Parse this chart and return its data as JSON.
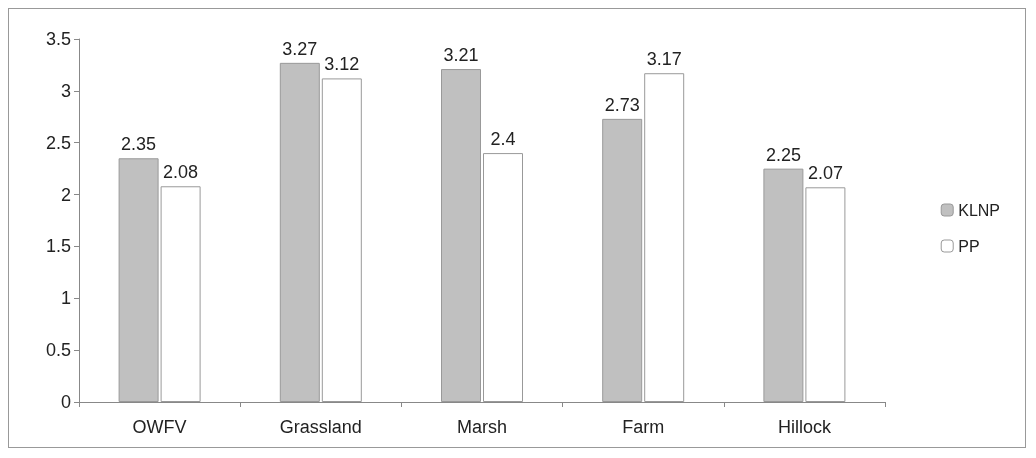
{
  "chart_data": {
    "type": "bar",
    "categories": [
      "OWFV",
      "Grassland",
      "Marsh",
      "Farm",
      "Hillock"
    ],
    "series": [
      {
        "name": "KLNP",
        "color": "#c0c0c0",
        "values": [
          2.35,
          3.27,
          3.21,
          2.73,
          2.25
        ]
      },
      {
        "name": "PP",
        "color": "#ffffff",
        "values": [
          2.08,
          3.12,
          2.4,
          3.17,
          2.07
        ]
      }
    ],
    "ylim": [
      0,
      3.5
    ],
    "yticks": [
      0,
      0.5,
      1,
      1.5,
      2,
      2.5,
      3,
      3.5
    ],
    "grid": false,
    "legend": "right",
    "data_labels": true
  }
}
